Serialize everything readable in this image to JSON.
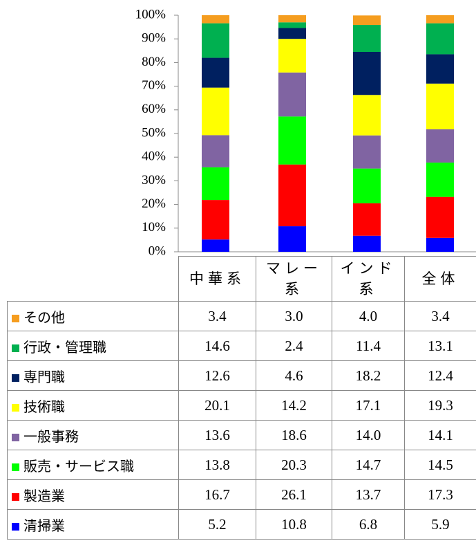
{
  "chart_data": {
    "type": "stacked_bar",
    "categories": [
      "中華系",
      "マレー系",
      "インド系",
      "全体"
    ],
    "ylim": [
      0,
      100
    ],
    "yticks": [
      {
        "value": 0,
        "label": "0%"
      },
      {
        "value": 10,
        "label": "10%"
      },
      {
        "value": 20,
        "label": "20%"
      },
      {
        "value": 30,
        "label": "30%"
      },
      {
        "value": 40,
        "label": "40%"
      },
      {
        "value": 50,
        "label": "50%"
      },
      {
        "value": 60,
        "label": "60%"
      },
      {
        "value": 70,
        "label": "70%"
      },
      {
        "value": 80,
        "label": "80%"
      },
      {
        "value": 90,
        "label": "90%"
      },
      {
        "value": 100,
        "label": "100%"
      }
    ],
    "series": [
      {
        "name": "清掃業",
        "color": "#0000ff",
        "values": [
          5.2,
          10.8,
          6.8,
          5.9
        ],
        "value_labels": [
          "5.2",
          "10.8",
          "6.8",
          "5.9"
        ]
      },
      {
        "name": "製造業",
        "color": "#ff0000",
        "values": [
          16.7,
          26.1,
          13.7,
          17.3
        ],
        "value_labels": [
          "16.7",
          "26.1",
          "13.7",
          "17.3"
        ]
      },
      {
        "name": "販売・サービス職",
        "color": "#00ff00",
        "values": [
          13.8,
          20.3,
          14.7,
          14.5
        ],
        "value_labels": [
          "13.8",
          "20.3",
          "14.7",
          "14.5"
        ]
      },
      {
        "name": "一般事務",
        "color": "#8064a2",
        "values": [
          13.6,
          18.6,
          14.0,
          14.1
        ],
        "value_labels": [
          "13.6",
          "18.6",
          "14.0",
          "14.1"
        ]
      },
      {
        "name": "技術職",
        "color": "#ffff00",
        "values": [
          20.1,
          14.2,
          17.1,
          19.3
        ],
        "value_labels": [
          "20.1",
          "14.2",
          "17.1",
          "19.3"
        ]
      },
      {
        "name": "専門職",
        "color": "#002060",
        "values": [
          12.6,
          4.6,
          18.2,
          12.4
        ],
        "value_labels": [
          "12.6",
          "4.6",
          "18.2",
          "12.4"
        ]
      },
      {
        "name": "行政・管理職",
        "color": "#00b050",
        "values": [
          14.6,
          2.4,
          11.4,
          13.1
        ],
        "value_labels": [
          "14.6",
          "2.4",
          "11.4",
          "13.1"
        ]
      },
      {
        "name": "その他",
        "color": "#f59d1f",
        "values": [
          3.4,
          3.0,
          4.0,
          3.4
        ],
        "value_labels": [
          "3.4",
          "3.0",
          "4.0",
          "3.4"
        ]
      }
    ]
  }
}
